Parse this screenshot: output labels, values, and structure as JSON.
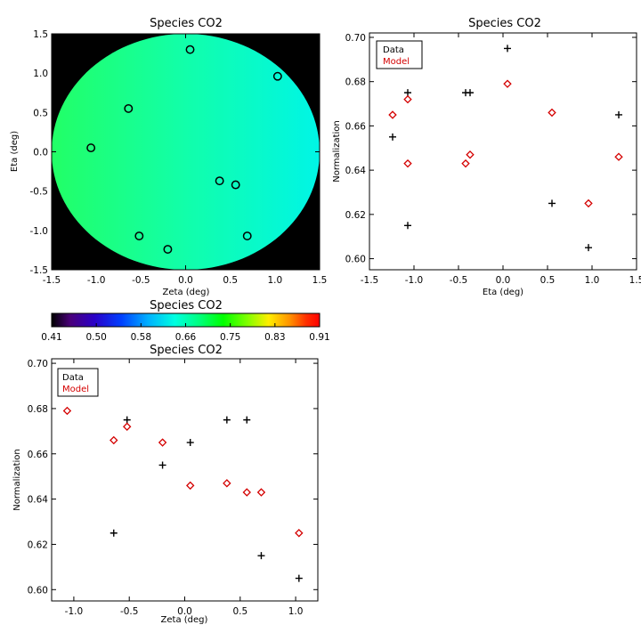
{
  "chart_data": [
    {
      "id": "map",
      "type": "heatmap",
      "title": "Species CO2",
      "xlabel": "Zeta (deg)",
      "ylabel": "Eta (deg)",
      "xlim": [
        -1.5,
        1.5
      ],
      "ylim": [
        -1.5,
        1.5
      ],
      "x_ticks": [
        "-1.5",
        "-1.0",
        "-0.5",
        "0.0",
        "0.5",
        "1.0",
        "1.5"
      ],
      "y_ticks": [
        "-1.5",
        "-1.0",
        "-0.5",
        "0.0",
        "0.5",
        "1.0",
        "1.5"
      ],
      "background_color": "#000000",
      "disk": {
        "center": [
          0.0,
          0.0
        ],
        "radius": 1.5
      },
      "gradient": {
        "left_value": 0.655,
        "right_value": 0.625
      },
      "markers": [
        {
          "x": 0.05,
          "y": 1.3
        },
        {
          "x": 1.03,
          "y": 0.96
        },
        {
          "x": -0.64,
          "y": 0.55
        },
        {
          "x": -1.06,
          "y": 0.05
        },
        {
          "x": 0.38,
          "y": -0.37
        },
        {
          "x": 0.56,
          "y": -0.42
        },
        {
          "x": -0.52,
          "y": -1.07
        },
        {
          "x": -0.2,
          "y": -1.24
        },
        {
          "x": 0.69,
          "y": -1.07
        }
      ]
    },
    {
      "id": "eta",
      "type": "scatter",
      "title": "Species CO2",
      "xlabel": "Eta (deg)",
      "ylabel": "Normalization",
      "xlim": [
        -1.5,
        1.5
      ],
      "ylim": [
        0.595,
        0.702
      ],
      "x_ticks": [
        "-1.5",
        "-1.0",
        "-0.5",
        "0.0",
        "0.5",
        "1.0",
        "1.5"
      ],
      "y_ticks": [
        "0.60",
        "0.62",
        "0.64",
        "0.66",
        "0.68",
        "0.70"
      ],
      "legend": [
        "Data",
        "Model"
      ],
      "legend_position": "top-left",
      "series": [
        {
          "name": "Data",
          "marker": "plus",
          "color": "#000000",
          "x": [
            -1.24,
            -1.07,
            -1.07,
            -0.42,
            -0.37,
            0.05,
            0.55,
            0.96,
            1.3
          ],
          "y": [
            0.655,
            0.675,
            0.615,
            0.675,
            0.675,
            0.695,
            0.625,
            0.605,
            0.665
          ]
        },
        {
          "name": "Model",
          "marker": "diamond",
          "color": "#d40000",
          "x": [
            -1.24,
            -1.07,
            -1.07,
            -0.42,
            -0.37,
            0.05,
            0.55,
            0.96,
            1.3
          ],
          "y": [
            0.665,
            0.672,
            0.643,
            0.643,
            0.647,
            0.679,
            0.666,
            0.625,
            0.646
          ]
        }
      ]
    },
    {
      "id": "zeta",
      "type": "scatter",
      "title": "Species CO2",
      "xlabel": "Zeta (deg)",
      "ylabel": "Normalization",
      "xlim": [
        -1.2,
        1.2
      ],
      "ylim": [
        0.595,
        0.702
      ],
      "x_ticks": [
        "-1.0",
        "-0.5",
        "0.0",
        "0.5",
        "1.0"
      ],
      "x_tick_values": [
        -1.0,
        -0.5,
        0.0,
        0.5,
        1.0
      ],
      "y_ticks": [
        "0.60",
        "0.62",
        "0.64",
        "0.66",
        "0.68",
        "0.70"
      ],
      "legend": [
        "Data",
        "Model"
      ],
      "legend_position": "top-left",
      "series": [
        {
          "name": "Data",
          "marker": "plus",
          "color": "#000000",
          "x": [
            -1.06,
            -0.64,
            -0.52,
            -0.2,
            0.05,
            0.38,
            0.56,
            0.69,
            1.03
          ],
          "y": [
            0.695,
            0.625,
            0.675,
            0.655,
            0.665,
            0.675,
            0.675,
            0.615,
            0.605
          ]
        },
        {
          "name": "Model",
          "marker": "diamond",
          "color": "#d40000",
          "x": [
            -1.06,
            -0.64,
            -0.52,
            -0.2,
            0.05,
            0.38,
            0.56,
            0.69,
            1.03
          ],
          "y": [
            0.679,
            0.666,
            0.672,
            0.665,
            0.646,
            0.647,
            0.643,
            0.643,
            0.625
          ]
        }
      ]
    }
  ],
  "colorbar": {
    "title": "Species CO2",
    "range": [
      0.41,
      0.91
    ],
    "tick_labels": [
      "0.41",
      "0.50",
      "0.58",
      "0.66",
      "0.75",
      "0.83",
      "0.91"
    ]
  }
}
